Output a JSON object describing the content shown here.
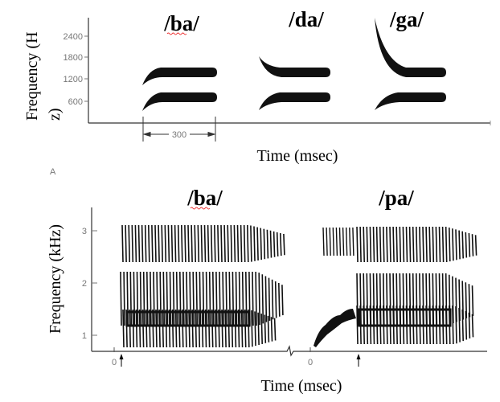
{
  "top_panel": {
    "syllables": [
      "/ba/",
      "/da/",
      "/ga/"
    ],
    "y_label_line1": "Frequency (H",
    "y_label_line2": "z)",
    "y_ticks": [
      "2400",
      "1800",
      "1200",
      "600"
    ],
    "duration_marker": "300",
    "x_label": "Time (msec)",
    "panel_letter": "A"
  },
  "bottom_panel": {
    "syllables": [
      "/ba/",
      "/pa/"
    ],
    "y_label": "Frequency (kHz)",
    "y_ticks": [
      "3",
      "2",
      "1"
    ],
    "x_zero_labels": [
      "0",
      "0"
    ],
    "x_label": "Time (msec)"
  },
  "colors": {
    "ink": "#000000",
    "tick_gray": "#777777",
    "spell_underline": "#e33333"
  }
}
